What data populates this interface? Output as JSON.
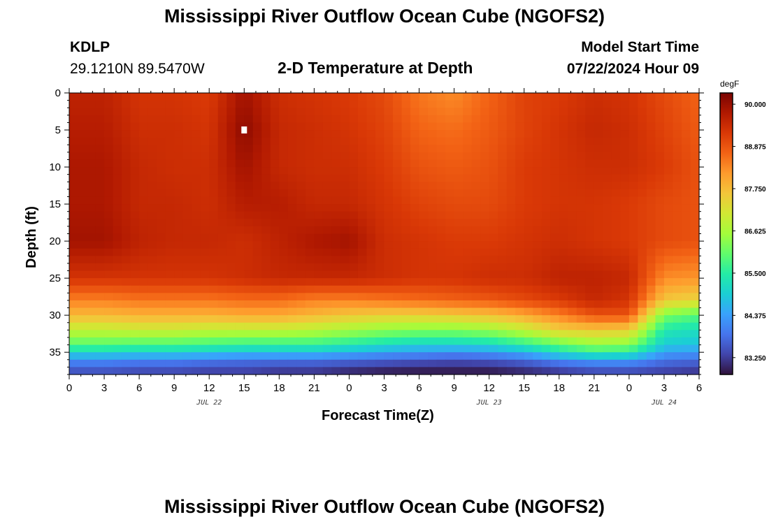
{
  "header": {
    "title": "Mississippi River Outflow Ocean Cube (NGOFS2)",
    "station_id": "KDLP",
    "station_coords": "29.1210N  89.5470W",
    "plot_title": "2-D Temperature at Depth",
    "model_start_label": "Model Start Time",
    "model_start_value": "07/22/2024 Hour 09"
  },
  "footer": {
    "title": "Mississippi River Outflow Ocean Cube (NGOFS2)"
  },
  "chart_data": {
    "type": "heatmap",
    "title": "2-D Temperature at Depth",
    "xlabel": "Forecast Time(Z)",
    "ylabel": "Depth (ft)",
    "x_tick_labels": [
      "0",
      "3",
      "6",
      "9",
      "12",
      "15",
      "18",
      "21",
      "0",
      "3",
      "6",
      "9",
      "12",
      "15",
      "18",
      "21",
      "0",
      "3",
      "6"
    ],
    "x_range_hours": [
      0,
      54
    ],
    "date_labels": [
      {
        "text": "JUL 22",
        "hour": 12
      },
      {
        "text": "JUL 23",
        "hour": 36
      },
      {
        "text": "JUL 24",
        "hour": 51
      }
    ],
    "y_tick_labels": [
      "0",
      "5",
      "10",
      "15",
      "20",
      "25",
      "30",
      "35"
    ],
    "y_ticks": [
      0,
      5,
      10,
      15,
      20,
      25,
      30,
      35
    ],
    "ylim": [
      0,
      38
    ],
    "colorbar": {
      "unit": "degF",
      "min": 82.8,
      "max": 90.3,
      "tick_labels": [
        "90.000",
        "88.875",
        "87.750",
        "86.625",
        "85.500",
        "84.375",
        "83.250"
      ],
      "tick_values": [
        90.0,
        88.875,
        87.75,
        86.625,
        85.5,
        84.375,
        83.25
      ],
      "palette": [
        "#30123b",
        "#4145ab",
        "#4675ed",
        "#39a2fc",
        "#1bcfd4",
        "#24eca6",
        "#61fc6c",
        "#a4fc3b",
        "#d1e834",
        "#f3c63a",
        "#fe9b2d",
        "#f36315",
        "#d93806",
        "#b11901",
        "#7a0402"
      ]
    },
    "time_hours": [
      0,
      3,
      6,
      9,
      12,
      15,
      18,
      21,
      24,
      27,
      30,
      33,
      36,
      39,
      42,
      45,
      48,
      51,
      54
    ],
    "depth_ft": [
      0,
      5,
      10,
      15,
      20,
      25,
      28,
      30,
      32,
      34,
      35,
      36,
      37,
      38
    ],
    "temperature_degF": [
      [
        89.6,
        89.6,
        89.3,
        89.3,
        89.2,
        89.9,
        89.4,
        89.3,
        89.2,
        89.0,
        88.5,
        88.3,
        88.7,
        89.1,
        89.2,
        89.4,
        89.3,
        89.0,
        88.7
      ],
      [
        89.7,
        89.7,
        89.4,
        89.4,
        89.3,
        90.1,
        89.5,
        89.4,
        89.3,
        89.1,
        88.7,
        88.6,
        88.8,
        89.1,
        89.3,
        89.5,
        89.4,
        89.1,
        88.8
      ],
      [
        89.8,
        89.8,
        89.5,
        89.4,
        89.4,
        89.9,
        89.5,
        89.4,
        89.4,
        89.2,
        88.9,
        88.8,
        88.9,
        89.2,
        89.3,
        89.4,
        89.4,
        89.2,
        88.9
      ],
      [
        89.8,
        89.8,
        89.5,
        89.5,
        89.4,
        89.7,
        89.7,
        89.5,
        89.5,
        89.3,
        89.1,
        89.0,
        89.0,
        89.2,
        89.3,
        89.3,
        89.2,
        89.0,
        88.9
      ],
      [
        89.9,
        89.9,
        89.6,
        89.5,
        89.5,
        89.4,
        89.6,
        89.8,
        89.9,
        89.4,
        89.3,
        89.2,
        89.2,
        89.3,
        89.4,
        89.3,
        89.2,
        89.0,
        88.9
      ],
      [
        89.3,
        89.3,
        89.3,
        89.3,
        89.3,
        89.4,
        89.5,
        89.5,
        89.5,
        89.4,
        89.3,
        89.3,
        89.4,
        89.4,
        89.6,
        89.6,
        89.5,
        88.3,
        88.2
      ],
      [
        88.4,
        88.4,
        88.5,
        88.5,
        88.5,
        88.6,
        88.6,
        88.4,
        88.4,
        88.5,
        88.6,
        88.7,
        88.8,
        89.0,
        89.2,
        89.5,
        89.3,
        87.6,
        87.4
      ],
      [
        87.8,
        87.8,
        87.9,
        87.9,
        87.9,
        88.0,
        88.0,
        87.8,
        87.6,
        87.5,
        87.5,
        87.6,
        87.7,
        88.0,
        88.4,
        88.9,
        88.9,
        86.2,
        85.9
      ],
      [
        86.9,
        86.9,
        87.0,
        87.0,
        86.9,
        86.9,
        86.9,
        86.8,
        86.6,
        86.4,
        86.3,
        86.3,
        86.5,
        86.9,
        87.5,
        87.6,
        87.5,
        85.4,
        85.2
      ],
      [
        85.9,
        85.9,
        85.8,
        85.8,
        85.7,
        85.6,
        85.6,
        85.6,
        85.4,
        85.2,
        85.0,
        85.0,
        85.1,
        85.5,
        86.0,
        86.4,
        86.3,
        84.9,
        84.8
      ],
      [
        85.1,
        85.1,
        85.0,
        85.0,
        84.9,
        84.8,
        84.8,
        84.8,
        84.6,
        84.4,
        84.3,
        84.2,
        84.3,
        84.6,
        85.2,
        85.6,
        85.5,
        84.4,
        84.3
      ],
      [
        84.2,
        84.2,
        84.1,
        84.1,
        84.0,
        83.9,
        83.9,
        83.9,
        83.8,
        83.7,
        83.6,
        83.5,
        83.6,
        83.8,
        84.2,
        84.4,
        84.4,
        83.9,
        83.8
      ],
      [
        83.7,
        83.7,
        83.6,
        83.6,
        83.5,
        83.5,
        83.4,
        83.4,
        83.3,
        83.2,
        83.1,
        83.1,
        83.1,
        83.3,
        83.5,
        83.7,
        83.7,
        83.5,
        83.4
      ],
      [
        83.4,
        83.4,
        83.3,
        83.3,
        83.2,
        83.2,
        83.1,
        83.1,
        82.9,
        82.8,
        82.8,
        82.8,
        82.8,
        82.9,
        83.1,
        83.3,
        83.3,
        83.2,
        83.1
      ]
    ],
    "marker": {
      "hour": 15,
      "depth_ft": 5
    }
  }
}
